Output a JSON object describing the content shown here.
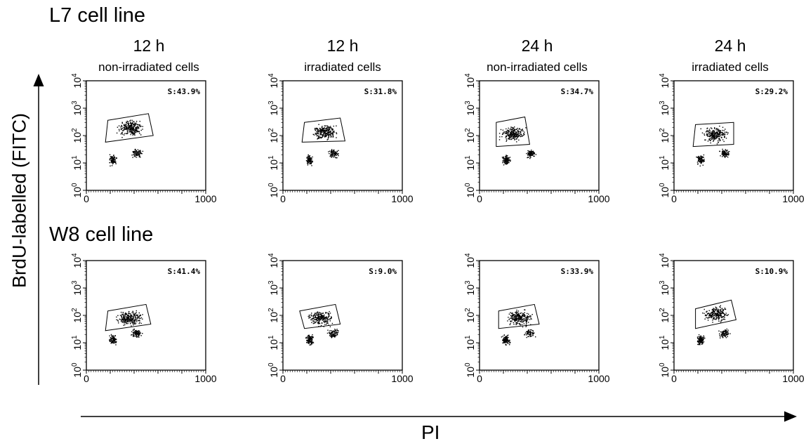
{
  "figure": {
    "rows": [
      {
        "title": "L7 cell line"
      },
      {
        "title": "W8 cell line"
      }
    ],
    "columns": [
      {
        "time": "12 h",
        "condition": "non-irradiated cells"
      },
      {
        "time": "12 h",
        "condition": "irradiated cells"
      },
      {
        "time": "24 h",
        "condition": "non-irradiated cells"
      },
      {
        "time": "24 h",
        "condition": "irradiated cells"
      }
    ],
    "y_axis_title": "BrdU-labelled  (FITC)",
    "x_axis_title": "PI"
  },
  "chart_data": [
    {
      "type": "scatter",
      "row": "L7 cell line",
      "time": "12 h",
      "condition": "non-irradiated cells",
      "s_phase_label": "S:43.9%",
      "x_ticks": [
        "0",
        "1000"
      ],
      "y_ticks": [
        "10^0",
        "10^1",
        "10^2",
        "10^3",
        "10^4"
      ],
      "xlim": [
        0,
        1000
      ],
      "ylim": [
        1,
        10000
      ],
      "yscale": "log"
    },
    {
      "type": "scatter",
      "row": "L7 cell line",
      "time": "12 h",
      "condition": "irradiated cells",
      "s_phase_label": "S:31.8%",
      "x_ticks": [
        "0",
        "1000"
      ],
      "y_ticks": [
        "10^0",
        "10^1",
        "10^2",
        "10^3",
        "10^4"
      ],
      "xlim": [
        0,
        1000
      ],
      "ylim": [
        1,
        10000
      ],
      "yscale": "log"
    },
    {
      "type": "scatter",
      "row": "L7 cell line",
      "time": "24 h",
      "condition": "non-irradiated cells",
      "s_phase_label": "S:34.7%",
      "x_ticks": [
        "0",
        "1000"
      ],
      "y_ticks": [
        "10^0",
        "10^1",
        "10^2",
        "10^3",
        "10^4"
      ],
      "xlim": [
        0,
        1000
      ],
      "ylim": [
        1,
        10000
      ],
      "yscale": "log"
    },
    {
      "type": "scatter",
      "row": "L7 cell line",
      "time": "24 h",
      "condition": "irradiated cells",
      "s_phase_label": "S:29.2%",
      "x_ticks": [
        "0",
        "1000"
      ],
      "y_ticks": [
        "10^0",
        "10^1",
        "10^2",
        "10^3",
        "10^4"
      ],
      "xlim": [
        0,
        1000
      ],
      "ylim": [
        1,
        10000
      ],
      "yscale": "log"
    },
    {
      "type": "scatter",
      "row": "W8 cell line",
      "time": "12 h",
      "condition": "non-irradiated cells",
      "s_phase_label": "S:41.4%",
      "x_ticks": [
        "0",
        "1000"
      ],
      "y_ticks": [
        "10^0",
        "10^1",
        "10^2",
        "10^3",
        "10^4"
      ],
      "xlim": [
        0,
        1000
      ],
      "ylim": [
        1,
        10000
      ],
      "yscale": "log"
    },
    {
      "type": "scatter",
      "row": "W8 cell line",
      "time": "12 h",
      "condition": "irradiated cells",
      "s_phase_label": "S:9.0%",
      "x_ticks": [
        "0",
        "1000"
      ],
      "y_ticks": [
        "10^0",
        "10^1",
        "10^2",
        "10^3",
        "10^4"
      ],
      "xlim": [
        0,
        1000
      ],
      "ylim": [
        1,
        10000
      ],
      "yscale": "log"
    },
    {
      "type": "scatter",
      "row": "W8 cell line",
      "time": "24 h",
      "condition": "non-irradiated cells",
      "s_phase_label": "S:33.9%",
      "x_ticks": [
        "0",
        "1000"
      ],
      "y_ticks": [
        "10^0",
        "10^1",
        "10^2",
        "10^3",
        "10^4"
      ],
      "xlim": [
        0,
        1000
      ],
      "ylim": [
        1,
        10000
      ],
      "yscale": "log"
    },
    {
      "type": "scatter",
      "row": "W8 cell line",
      "time": "24 h",
      "condition": "irradiated cells",
      "s_phase_label": "S:10.9%",
      "x_ticks": [
        "0",
        "1000"
      ],
      "y_ticks": [
        "10^0",
        "10^1",
        "10^2",
        "10^3",
        "10^4"
      ],
      "xlim": [
        0,
        1000
      ],
      "ylim": [
        1,
        10000
      ],
      "yscale": "log"
    }
  ]
}
